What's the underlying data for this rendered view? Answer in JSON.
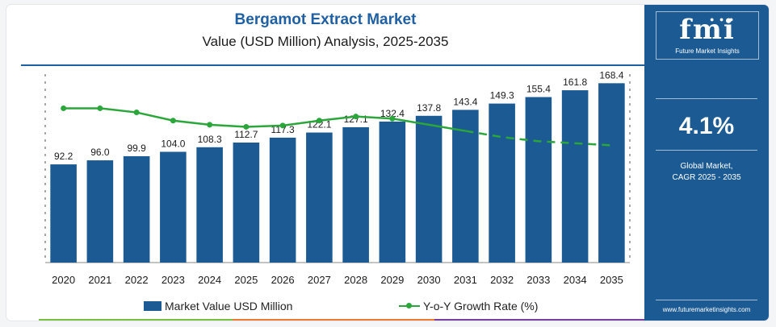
{
  "header": {
    "title": "Bergamot Extract Market",
    "subtitle": "Value (USD Million) Analysis, 2025-2035"
  },
  "chart_data": {
    "type": "bar",
    "categories": [
      "2020",
      "2021",
      "2022",
      "2023",
      "2024",
      "2025",
      "2026",
      "2027",
      "2028",
      "2029",
      "2030",
      "2031",
      "2032",
      "2033",
      "2034",
      "2035"
    ],
    "series": [
      {
        "name": "Market Value USD Million",
        "type": "bar",
        "values": [
          92.2,
          96.0,
          99.9,
          104.0,
          108.3,
          112.7,
          117.3,
          122.1,
          127.1,
          132.4,
          137.8,
          143.4,
          149.3,
          155.4,
          161.8,
          168.4
        ],
        "labels": [
          "92.2",
          "96.0",
          "99.9",
          "104.0",
          "108.3",
          "112.7",
          "117.3",
          "122.1",
          "127.1",
          "132.4",
          "137.8",
          "143.4",
          "149.3",
          "155.4",
          "161.8",
          "168.4"
        ]
      },
      {
        "name": "Y-o-Y Growth Rate (%)",
        "type": "line",
        "values": [
          4.2,
          4.2,
          4.1,
          3.9,
          3.8,
          3.75,
          3.78,
          3.9,
          4.0,
          3.95,
          3.8,
          3.65,
          3.5,
          3.4,
          3.35,
          3.3
        ]
      }
    ],
    "ylim": [
      0,
      180
    ],
    "grid": false,
    "legend": "bottom-center",
    "colors": {
      "bar": "#1b5a92",
      "line": "#2aa63a"
    }
  },
  "legend": {
    "bar_label": "Market Value USD Million",
    "line_label": "Y-o-Y Growth Rate (%)"
  },
  "sidebar": {
    "logo_text": "fmi",
    "logo_subtitle": "Future Market Insights",
    "cagr_value": "4.1%",
    "cagr_label_line1": "Global Market,",
    "cagr_label_line2": "CAGR 2025 - 2035",
    "website": "www.futuremarketinsights.com"
  }
}
